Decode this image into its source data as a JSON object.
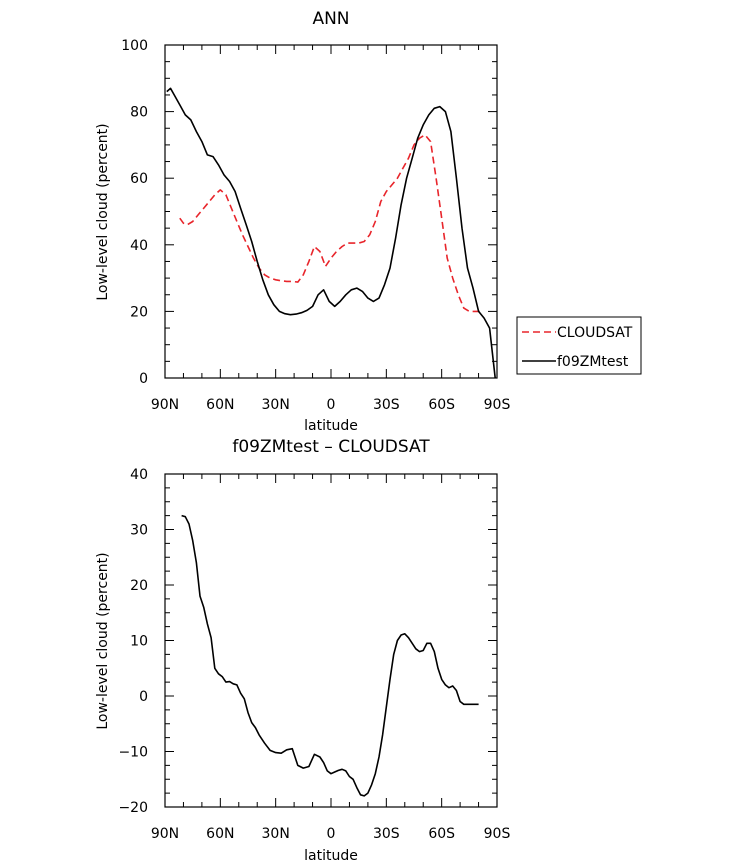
{
  "chart_data": [
    {
      "type": "line",
      "title": "ANN",
      "xlabel": "latitude",
      "ylabel": "Low-level cloud (percent)",
      "xlim": [
        90,
        -90
      ],
      "ylim": [
        0,
        100
      ],
      "x_ticks": [
        {
          "value": 90,
          "label": "90N"
        },
        {
          "value": 60,
          "label": "60N"
        },
        {
          "value": 30,
          "label": "30N"
        },
        {
          "value": 0,
          "label": "0"
        },
        {
          "value": -30,
          "label": "30S"
        },
        {
          "value": -60,
          "label": "60S"
        },
        {
          "value": -90,
          "label": "90S"
        }
      ],
      "y_ticks": [
        {
          "value": 0,
          "label": "0"
        },
        {
          "value": 20,
          "label": "20"
        },
        {
          "value": 40,
          "label": "40"
        },
        {
          "value": 60,
          "label": "60"
        },
        {
          "value": 80,
          "label": "80"
        },
        {
          "value": 100,
          "label": "100"
        }
      ],
      "legend_placement": "right",
      "series": [
        {
          "name": "CLOUDSAT",
          "color": "#e8252b",
          "dash": "dashed",
          "x": [
            82,
            80,
            78,
            75,
            72,
            69,
            66,
            63,
            60,
            57,
            54,
            51,
            48,
            45,
            42,
            39,
            36,
            33,
            30,
            27,
            24,
            21,
            18,
            15,
            12,
            9,
            6,
            3,
            0,
            -3,
            -6,
            -9,
            -12,
            -15,
            -18,
            -21,
            -24,
            -27,
            -30,
            -33,
            -36,
            -39,
            -42,
            -45,
            -48,
            -51,
            -54,
            -57,
            -60,
            -63,
            -66,
            -69,
            -72,
            -75,
            -78,
            -81,
            -82
          ],
          "y": [
            48,
            46.5,
            46,
            47,
            49,
            51,
            53,
            55,
            56.5,
            55,
            51,
            47,
            43,
            39.5,
            36,
            33,
            31,
            30,
            29.5,
            29.2,
            29,
            29,
            28.8,
            31,
            35,
            39.5,
            38,
            33.5,
            36,
            38,
            39.5,
            40.5,
            40.5,
            40.5,
            41,
            43,
            47,
            53,
            56,
            58,
            60,
            63,
            66,
            70,
            72,
            73,
            71,
            60,
            48,
            36,
            30,
            25,
            21,
            20,
            20,
            20,
            20
          ]
        },
        {
          "name": "f09ZMtest",
          "color": "#000000",
          "dash": "solid",
          "x": [
            89,
            87,
            85,
            82,
            79,
            76,
            73,
            70,
            67,
            64,
            61,
            58,
            55,
            52,
            49,
            46,
            43,
            40,
            37,
            34,
            31,
            28,
            25,
            22,
            19,
            16,
            13,
            10,
            7,
            4,
            1,
            -2,
            -5,
            -8,
            -11,
            -14,
            -17,
            -20,
            -23,
            -26,
            -29,
            -32,
            -35,
            -38,
            -41,
            -44,
            -47,
            -50,
            -53,
            -56,
            -59,
            -62,
            -65,
            -68,
            -71,
            -74,
            -77,
            -80,
            -83,
            -86,
            -89
          ],
          "y": [
            86,
            87,
            85,
            82,
            79,
            77.5,
            74,
            71,
            67,
            66.5,
            64,
            61,
            59,
            56,
            51,
            46,
            41,
            35,
            29.5,
            25,
            22,
            20,
            19.3,
            19,
            19.2,
            19.6,
            20.3,
            21.5,
            25,
            26.5,
            23,
            21.5,
            23,
            25,
            26.5,
            27,
            26,
            24,
            23,
            24,
            28,
            33,
            42,
            52,
            60,
            66,
            72,
            76,
            79,
            81,
            81.5,
            80,
            74,
            60,
            45,
            33,
            27,
            20,
            18,
            15,
            0
          ]
        }
      ]
    },
    {
      "type": "line",
      "title": "f09ZMtest  –  CLOUDSAT",
      "xlabel": "latitude",
      "ylabel": "Low-level cloud (percent)",
      "xlim": [
        90,
        -90
      ],
      "ylim": [
        -20,
        40
      ],
      "x_ticks": [
        {
          "value": 90,
          "label": "90N"
        },
        {
          "value": 60,
          "label": "60N"
        },
        {
          "value": 30,
          "label": "30N"
        },
        {
          "value": 0,
          "label": "0"
        },
        {
          "value": -30,
          "label": "30S"
        },
        {
          "value": -60,
          "label": "60S"
        },
        {
          "value": -90,
          "label": "90S"
        }
      ],
      "y_ticks": [
        {
          "value": -20,
          "label": "−20"
        },
        {
          "value": -10,
          "label": "−10"
        },
        {
          "value": 0,
          "label": "0"
        },
        {
          "value": 10,
          "label": "10"
        },
        {
          "value": 20,
          "label": "20"
        },
        {
          "value": 30,
          "label": "30"
        },
        {
          "value": 40,
          "label": "40"
        }
      ],
      "series": [
        {
          "color": "#000000",
          "dash": "solid",
          "x": [
            81,
            79,
            77,
            75,
            73,
            71,
            69,
            67,
            65,
            63,
            61,
            59,
            57,
            55,
            53,
            51,
            49,
            47,
            45,
            43,
            41,
            39,
            36,
            33,
            30,
            27,
            24,
            21,
            18,
            15,
            12,
            9,
            6,
            4,
            2,
            0,
            -2,
            -4,
            -6,
            -8,
            -10,
            -12,
            -14,
            -16,
            -18,
            -20,
            -22,
            -24,
            -26,
            -28,
            -30,
            -32,
            -34,
            -36,
            -38,
            -40,
            -42,
            -44,
            -46,
            -48,
            -50,
            -52,
            -54,
            -56,
            -58,
            -60,
            -62,
            -64,
            -66,
            -68,
            -70,
            -72,
            -74,
            -76,
            -78,
            -80
          ],
          "y": [
            32.5,
            32.3,
            31,
            28,
            24,
            18,
            16,
            13,
            10.5,
            5,
            4,
            3.5,
            2.5,
            2.6,
            2.2,
            2,
            0.5,
            -0.5,
            -3,
            -4.8,
            -5.7,
            -7,
            -8.5,
            -9.8,
            -10.2,
            -10.3,
            -9.7,
            -9.5,
            -12.5,
            -13,
            -12.7,
            -10.5,
            -11,
            -12,
            -13.5,
            -14,
            -13.7,
            -13.4,
            -13.2,
            -13.5,
            -14.5,
            -15,
            -16.5,
            -17.8,
            -18,
            -17.5,
            -16,
            -14,
            -11,
            -7,
            -2,
            3,
            7.5,
            10,
            11,
            11.2,
            10.5,
            9.5,
            8.5,
            8,
            8.2,
            9.5,
            9.5,
            8,
            5,
            3,
            2,
            1.5,
            1.8,
            1,
            -1,
            -1.5,
            -1.5,
            -1.5,
            -1.5,
            -1.5
          ]
        }
      ]
    }
  ]
}
